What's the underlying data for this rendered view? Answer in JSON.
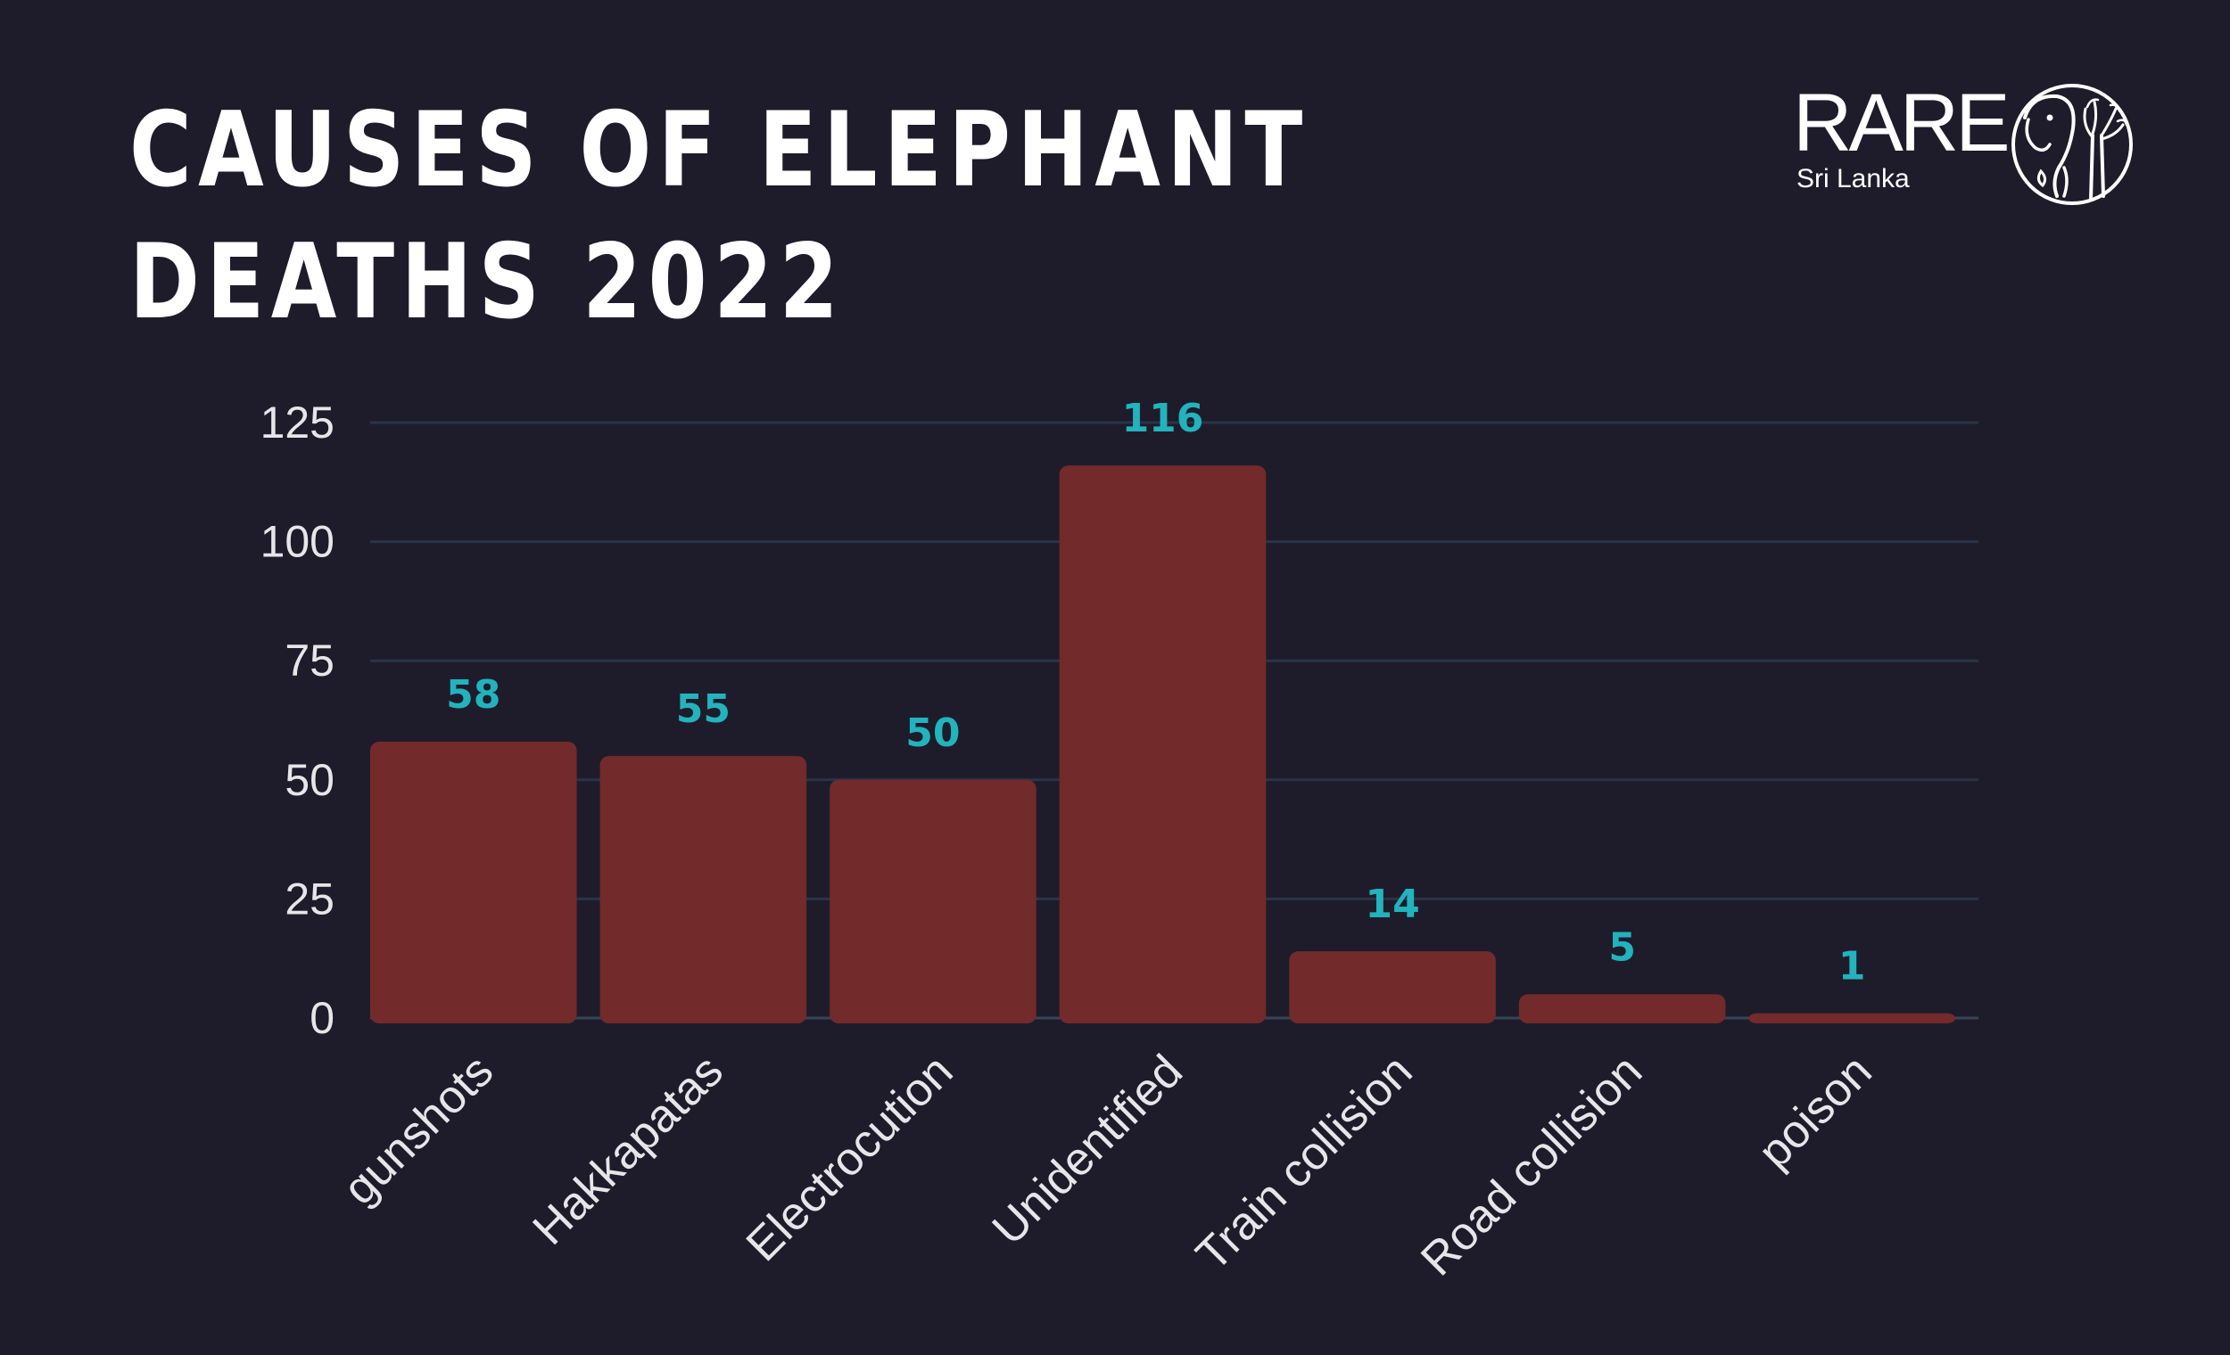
{
  "title_lines": [
    "CAUSES OF ELEPHANT",
    "DEATHS 2022"
  ],
  "logo": {
    "word": "RARE",
    "subtitle": "Sri Lanka",
    "emblem_icon": "elephant-tree-emblem-icon"
  },
  "colors": {
    "background": "#1e1c2b",
    "bar": "#722a2b",
    "value_label": "#22b3bd",
    "grid": "#2a3448",
    "text": "#e6e6ea"
  },
  "chart_data": {
    "type": "bar",
    "title": "CAUSES OF ELEPHANT DEATHS 2022",
    "xlabel": "",
    "ylabel": "",
    "categories": [
      "gunshots",
      "Hakkapatas",
      "Electrocution",
      "Unidentified",
      "Train collision",
      "Road collision",
      "poison"
    ],
    "values": [
      58,
      55,
      50,
      116,
      14,
      5,
      1
    ],
    "ylim": [
      0,
      125
    ],
    "yticks": [
      0,
      25,
      50,
      75,
      100,
      125
    ],
    "grid": true,
    "legend": "none",
    "data_labels": true
  }
}
